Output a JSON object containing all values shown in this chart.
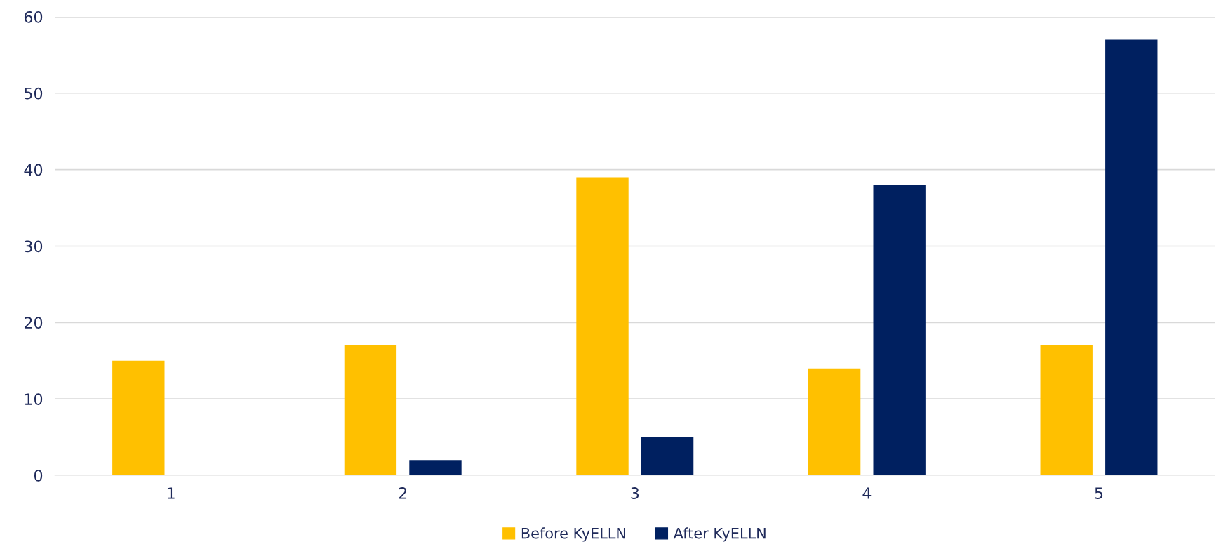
{
  "chart_data": {
    "type": "bar",
    "categories": [
      "1",
      "2",
      "3",
      "4",
      "5"
    ],
    "series": [
      {
        "name": "Before KyELLN",
        "color": "#ffc000",
        "values": [
          15,
          17,
          39,
          14,
          17
        ]
      },
      {
        "name": "After KyELLN",
        "color": "#002060",
        "values": [
          0,
          2,
          5,
          38,
          57
        ]
      }
    ],
    "ylim": [
      0,
      60
    ],
    "yticks": [
      0,
      10,
      20,
      30,
      40,
      50,
      60
    ],
    "grid": "y",
    "legend": "bottom"
  }
}
